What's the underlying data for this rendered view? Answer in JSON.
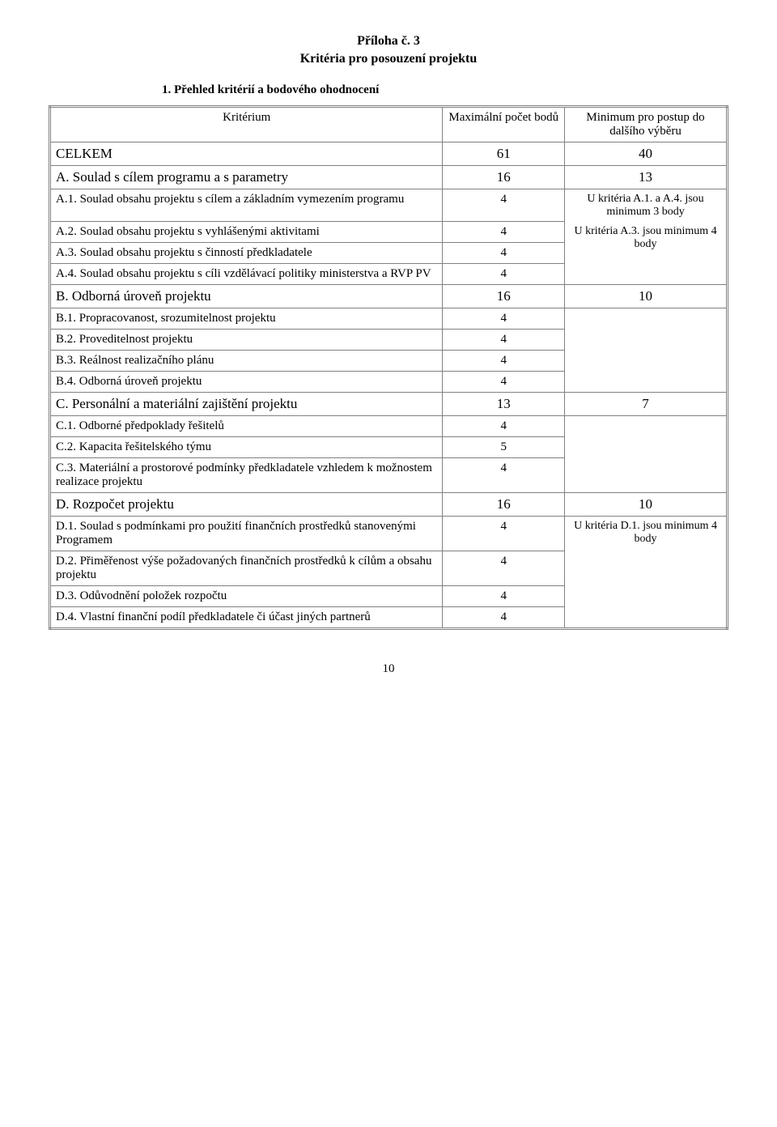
{
  "title_line1": "Příloha č. 3",
  "title_line2": "Kritéria pro posouzení projektu",
  "subtitle": "1. Přehled kritérií a bodového ohodnocení",
  "header": {
    "criterion": "Kritérium",
    "max_points": "Maximální počet bodů",
    "minimum": "Minimum pro postup do dalšího výběru"
  },
  "celkem": {
    "label": "CELKEM",
    "points": "61",
    "min": "40"
  },
  "A": {
    "label": "A. Soulad s cílem programu a s parametry",
    "points": "16",
    "min": "13",
    "sub": [
      {
        "label": "A.1. Soulad obsahu projektu s cílem a základním vymezením programu",
        "pts": "4"
      },
      {
        "label": "A.2. Soulad obsahu projektu s vyhlášenými aktivitami",
        "pts": "4"
      },
      {
        "label": "A.3. Soulad obsahu projektu s činností předkladatele",
        "pts": "4"
      },
      {
        "label": "A.4. Soulad obsahu projektu s cíli vzdělávací politiky ministerstva a RVP PV",
        "pts": "4"
      }
    ],
    "note1": "U kritéria A.1. a A.4. jsou minimum 3 body",
    "note2": "U kritéria A.3. jsou minimum 4 body"
  },
  "B": {
    "label": "B. Odborná úroveň projektu",
    "points": "16",
    "min": "10",
    "sub": [
      {
        "label": "B.1. Propracovanost, srozumitelnost projektu",
        "pts": "4"
      },
      {
        "label": "B.2. Proveditelnost projektu",
        "pts": "4"
      },
      {
        "label": "B.3. Reálnost realizačního plánu",
        "pts": "4"
      },
      {
        "label": "B.4. Odborná úroveň projektu",
        "pts": "4"
      }
    ]
  },
  "C": {
    "label": "C. Personální a materiální zajištění projektu",
    "points": "13",
    "min": "7",
    "sub": [
      {
        "label": "C.1. Odborné předpoklady řešitelů",
        "pts": "4"
      },
      {
        "label": "C.2. Kapacita řešitelského týmu",
        "pts": "5"
      },
      {
        "label": "C.3. Materiální a prostorové podmínky předkladatele vzhledem k možnostem realizace projektu",
        "pts": "4"
      }
    ]
  },
  "D": {
    "label": "D. Rozpočet projektu",
    "points": "16",
    "min": "10",
    "sub": [
      {
        "label": "D.1. Soulad s podmínkami pro použití finančních prostředků stanovenými Programem",
        "pts": "4"
      },
      {
        "label": "D.2. Přiměřenost výše požadovaných finančních prostředků k cílům a obsahu projektu",
        "pts": "4"
      },
      {
        "label": "D.3. Odůvodnění položek rozpočtu",
        "pts": "4"
      },
      {
        "label": "D.4. Vlastní finanční podíl předkladatele či účast jiných partnerů",
        "pts": "4"
      }
    ],
    "note": "U kritéria D.1. jsou minimum 4 body"
  },
  "page_number": "10"
}
